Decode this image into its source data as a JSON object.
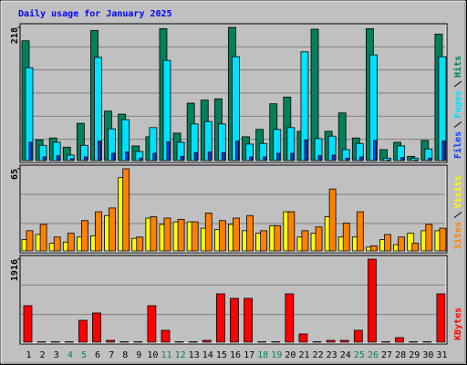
{
  "chart_data": [
    {
      "type": "bar",
      "title": "Daily usage for January 2025",
      "title_color": "#0000ff",
      "ylim": [
        0,
        218
      ],
      "yticks": [
        218
      ],
      "series": [
        {
          "name": "Hits",
          "color": "#00805c",
          "values": [
            196,
            34,
            37,
            22,
            61,
            213,
            81,
            76,
            24,
            39,
            216,
            45,
            94,
            99,
            101,
            218,
            39,
            51,
            93,
            104,
            48,
            215,
            48,
            78,
            37,
            216,
            18,
            30,
            7,
            33,
            207
          ]
        },
        {
          "name": "Pages",
          "color": "#00e0ff",
          "values": [
            152,
            25,
            30,
            9,
            25,
            169,
            52,
            67,
            15,
            54,
            164,
            30,
            60,
            64,
            60,
            170,
            27,
            28,
            51,
            54,
            178,
            36,
            40,
            18,
            28,
            173,
            4,
            24,
            4,
            19,
            170
          ]
        },
        {
          "name": "Files",
          "color": "#0040ff",
          "values": [
            30,
            6,
            8,
            3,
            6,
            32,
            12,
            14,
            4,
            12,
            31,
            7,
            13,
            14,
            13,
            32,
            6,
            6,
            12,
            12,
            34,
            8,
            9,
            4,
            6,
            33,
            1,
            5,
            1,
            4,
            32
          ]
        }
      ]
    },
    {
      "type": "bar",
      "ylim": [
        0,
        65
      ],
      "yticks": [
        65
      ],
      "series": [
        {
          "name": "Visits",
          "color": "#ffff00",
          "values": [
            9,
            13,
            6,
            7,
            11,
            12,
            28,
            58,
            10,
            26,
            21,
            23,
            23,
            18,
            17,
            21,
            16,
            14,
            20,
            31,
            11,
            14,
            27,
            11,
            11,
            3,
            9,
            5,
            14,
            16,
            16
          ]
        },
        {
          "name": "Sites",
          "color": "#ff8000",
          "values": [
            16,
            21,
            11,
            14,
            24,
            31,
            34,
            65,
            11,
            27,
            26,
            25,
            23,
            30,
            24,
            26,
            28,
            16,
            20,
            31,
            16,
            19,
            49,
            22,
            31,
            4,
            13,
            11,
            6,
            21,
            18
          ]
        }
      ]
    },
    {
      "type": "bar",
      "ylim": [
        0,
        1916
      ],
      "yticks": [
        1916
      ],
      "categories": [
        "1",
        "2",
        "3",
        "4",
        "5",
        "6",
        "7",
        "8",
        "9",
        "10",
        "11",
        "12",
        "13",
        "14",
        "15",
        "16",
        "17",
        "18",
        "19",
        "20",
        "21",
        "22",
        "23",
        "24",
        "25",
        "26",
        "27",
        "28",
        "29",
        "30",
        "31"
      ],
      "category_colors": [
        "#000000",
        "#000000",
        "#000000",
        "#00805c",
        "#00805c",
        "#000000",
        "#000000",
        "#000000",
        "#000000",
        "#000000",
        "#00805c",
        "#00805c",
        "#000000",
        "#000000",
        "#000000",
        "#000000",
        "#000000",
        "#00805c",
        "#00805c",
        "#000000",
        "#000000",
        "#000000",
        "#000000",
        "#000000",
        "#00805c",
        "#00805c",
        "#000000",
        "#000000",
        "#000000",
        "#000000",
        "#000000"
      ],
      "series": [
        {
          "name": "KBytes",
          "color": "#ff0000",
          "values": [
            842,
            10,
            10,
            10,
            505,
            674,
            42,
            10,
            10,
            842,
            274,
            10,
            10,
            42,
            1116,
            1011,
            1011,
            10,
            10,
            1116,
            190,
            10,
            42,
            42,
            274,
            1916,
            10,
            105,
            10,
            10,
            1116
          ]
        }
      ]
    }
  ]
}
